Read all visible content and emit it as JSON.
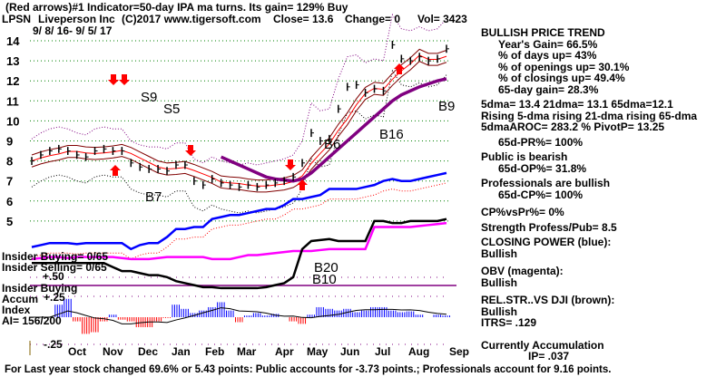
{
  "header": {
    "line1": "(Red arrows)#1 Indicator=50-day IPA ma turns. Its gain= 129% Buy",
    "ticker": "LPSN",
    "company": "Liveperson Inc",
    "copyright": "(C)2017 www.tigersoft.com",
    "close": "Close=  13.6",
    "change": "Change= 0",
    "vol": "Vol= 3423",
    "date_range": "9/ 8/ 16- 9/ 5/ 17"
  },
  "stats": {
    "trend": "BULLISH PRICE TREND",
    "years_gain": "Year's Gain= 66.5%",
    "days_up": "% of days up= 43%",
    "openings_up": "% of openings up= 30.1%",
    "closings_up": "% of closings up= 49.4%",
    "gain65": "65-day gain= 28.3%",
    "dma": "5dma= 13.4 21dma= 13.1 65dma=12.1",
    "rising": "Rising 5-dma  rising 21-dma  rising 65-dma",
    "aroc": "5dmaAROC= 283.2 %  PivotP= 13.25",
    "pr65": "65d-PR%= 100%",
    "public": "Public is bearish",
    "op65": "65d-OP%= 31.8%",
    "pros": "Professionals are bullish",
    "cp65": "65d-CP%= 100%",
    "cpvspr": "CP%vsPr%=  0%",
    "strength": "Strength Profess/Pub= 8.5",
    "cp_title": "CLOSING POWER (blue):",
    "cp_val": "Bullish",
    "obv_title": "OBV (magenta):",
    "obv_val": "Bullish",
    "rs_title": "REL.STR..VS DJI (brown):",
    "rs_val": "Bullish",
    "itrs": "ITRS= .129",
    "accum": "Currently Accumulation",
    "ip": "IP=  .037"
  },
  "panel_labels": {
    "insider_buying": "Insider Buying= 0/65",
    "insider_selling": "Insider Selling= 0/65",
    "plus50": "+.50",
    "insider_buying2": "Insider Buying",
    "accum": "Accum",
    "index": "Index",
    "ai": "AI= 156/200",
    "plus25": "+.25",
    "minus25": "-.25"
  },
  "footer": "For Last year stock changed  69.6% or  5.43 points:  Public accounts for -3.73 points.;  Professionals account for  9.16 points.",
  "chart_data": {
    "type": "line",
    "title": "LPSN Liveperson Inc",
    "ylim": [
      5,
      14
    ],
    "yticks": [
      "14",
      "13",
      "12",
      "11",
      "10",
      "9",
      "8",
      "7",
      "6",
      "5"
    ],
    "months": [
      "Oct",
      "Nov",
      "Dec",
      "Jan",
      "Feb",
      "Mar",
      "Apr",
      "May",
      "Jun",
      "Jul",
      "Aug",
      "Sep"
    ],
    "price": [
      8.0,
      8.3,
      8.5,
      8.6,
      8.5,
      8.3,
      8.2,
      8.5,
      8.6,
      8.5,
      8.5,
      7.9,
      7.7,
      7.6,
      7.6,
      7.5,
      7.8,
      7.8,
      7.0,
      6.8,
      7.1,
      6.9,
      6.8,
      6.7,
      6.8,
      6.7,
      6.8,
      6.9,
      7.0,
      7.2,
      7.9,
      9.4,
      9.0,
      9.1,
      10.6,
      11.7,
      11.8,
      11.4,
      11.6,
      11.5,
      13.8,
      13.1,
      13.0,
      13.2,
      13.0,
      13.1,
      13.6
    ],
    "ma65": [
      null,
      null,
      null,
      null,
      null,
      null,
      null,
      null,
      null,
      null,
      null,
      null,
      null,
      null,
      null,
      null,
      null,
      null,
      null,
      null,
      null,
      8.2,
      8.0,
      7.8,
      7.6,
      7.4,
      7.2,
      7.1,
      7.05,
      7.0,
      7.1,
      7.4,
      7.8,
      8.2,
      8.6,
      9.0,
      9.4,
      9.8,
      10.2,
      10.6,
      11.0,
      11.3,
      11.5,
      11.7,
      11.85,
      12.0,
      12.1
    ],
    "closing_power": [
      3.7,
      3.8,
      3.9,
      3.9,
      3.9,
      3.85,
      3.9,
      3.9,
      3.9,
      3.9,
      3.9,
      3.6,
      3.8,
      3.9,
      3.9,
      4.2,
      4.6,
      4.6,
      4.7,
      4.7,
      5.1,
      5.2,
      5.3,
      5.3,
      5.4,
      5.5,
      5.6,
      5.6,
      5.8,
      6.1,
      6.1,
      6.2,
      6.3,
      6.6,
      6.6,
      6.6,
      6.6,
      6.7,
      6.8,
      7.0,
      7.1,
      7.0,
      7.0,
      7.1,
      7.2,
      7.3,
      7.4
    ],
    "obv": [
      3.1,
      3.15,
      3.2,
      3.2,
      3.15,
      3.2,
      3.2,
      3.2,
      3.2,
      3.2,
      3.15,
      3.1,
      3.1,
      3.1,
      3.15,
      3.2,
      3.2,
      3.2,
      3.2,
      3.2,
      3.1,
      3.1,
      3.1,
      3.2,
      3.3,
      3.3,
      3.35,
      3.4,
      3.45,
      3.5,
      3.5,
      3.5,
      3.55,
      3.6,
      3.6,
      3.6,
      3.6,
      3.6,
      4.7,
      4.7,
      4.7,
      4.7,
      4.7,
      4.75,
      4.8,
      4.85,
      4.9
    ],
    "rel_strength": [
      2.9,
      2.9,
      2.9,
      2.9,
      2.9,
      2.9,
      2.9,
      2.9,
      2.9,
      2.7,
      2.5,
      2.5,
      2.4,
      2.3,
      2.3,
      2.2,
      2.0,
      1.9,
      1.8,
      1.7,
      1.7,
      1.65,
      1.65,
      1.65,
      1.65,
      1.65,
      1.7,
      1.8,
      1.9,
      2.2,
      3.6,
      4.0,
      4.05,
      4.1,
      4.0,
      4.0,
      4.0,
      4.0,
      5.0,
      5.0,
      4.9,
      4.9,
      5.0,
      5.0,
      5.0,
      5.0,
      5.1
    ],
    "accumulation": [
      0,
      0,
      0,
      0.15,
      0.22,
      -0.05,
      -0.2,
      -0.18,
      -0.05,
      0.03,
      -0.03,
      -0.05,
      -0.12,
      -0.12,
      -0.05,
      -0.01,
      0.15,
      0.1,
      0.05,
      0.08,
      0.12,
      0.18,
      0.08,
      -0.06,
      0.02,
      0.05,
      0.02,
      0.04,
      0.0,
      -0.05,
      -0.08,
      0.03,
      0.12,
      0.1,
      0.08,
      0.1,
      0.06,
      0.08,
      0.12,
      0.12,
      0.08,
      0.06,
      0.07,
      0.03,
      0.0,
      0.03,
      0.02
    ],
    "accum_ylim": [
      -0.25,
      0.25
    ],
    "signals": [
      "S9",
      "S5",
      "B7",
      "B6",
      "B16",
      "B9",
      "B20",
      "B10"
    ]
  }
}
